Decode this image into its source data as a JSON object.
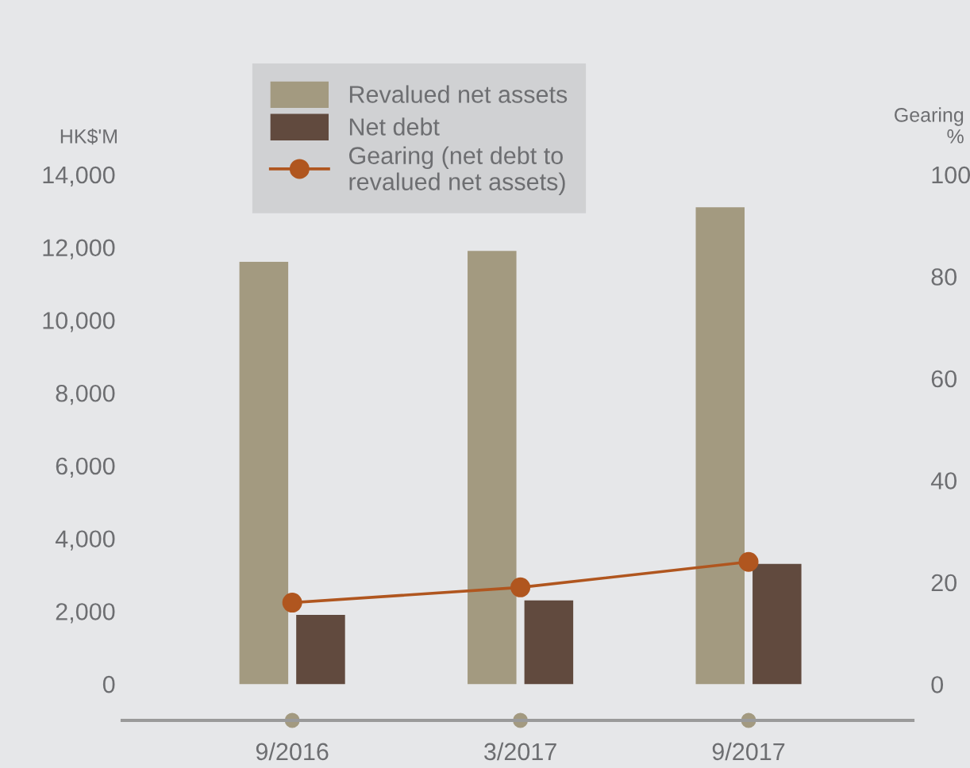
{
  "chart_data": {
    "type": "bar",
    "categories": [
      "9/2016",
      "3/2017",
      "9/2017"
    ],
    "series": [
      {
        "name": "Revalued net assets",
        "color": "#a39a80",
        "values": [
          11600,
          11900,
          13100
        ]
      },
      {
        "name": "Net debt",
        "color": "#614a3e",
        "values": [
          1900,
          2300,
          3300
        ]
      },
      {
        "name": "Gearing (net debt to\nrevalued net assets)",
        "type": "line",
        "axis": "y2",
        "color": "#b0561f",
        "marker": "circle",
        "values": [
          16,
          19,
          24
        ]
      }
    ],
    "ylabel": "HK$'M",
    "y2label": "Gearing\n%",
    "ylim": [
      -1000,
      14000
    ],
    "yticks": [
      {
        "value": 0,
        "label": "0"
      },
      {
        "value": 2000,
        "label": "2,000"
      },
      {
        "value": 4000,
        "label": "4,000"
      },
      {
        "value": 6000,
        "label": "6,000"
      },
      {
        "value": 8000,
        "label": "8,000"
      },
      {
        "value": 10000,
        "label": "10,000"
      },
      {
        "value": 12000,
        "label": "12,000"
      },
      {
        "value": 14000,
        "label": "14,000"
      }
    ],
    "y2lim": [
      -7.1,
      100
    ],
    "y2ticks": [
      0,
      20,
      40,
      60,
      80,
      100
    ],
    "grid": false,
    "legend": "top left"
  }
}
